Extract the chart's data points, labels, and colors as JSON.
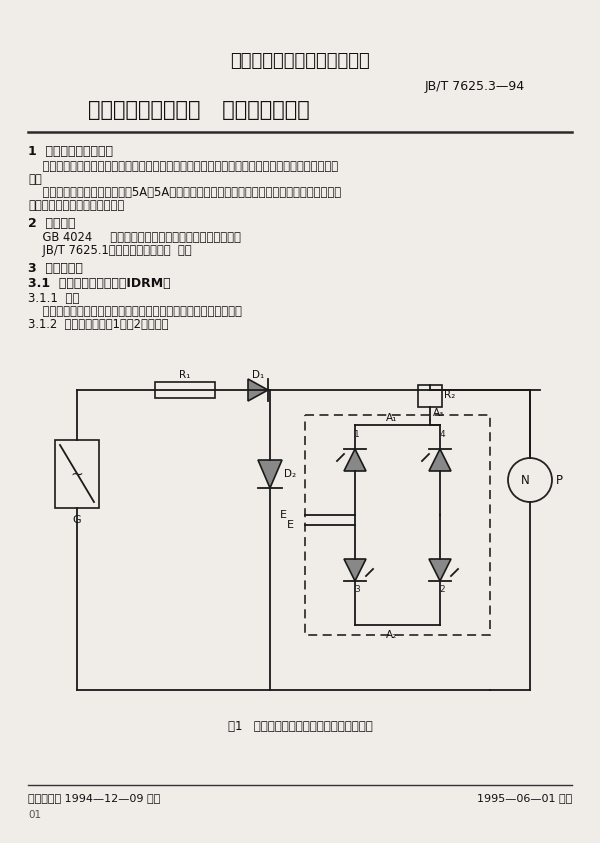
{
  "bg_color": "#f0ede8",
  "title1": "中华人民共和国机械行业标准",
  "title2": "JB/T 7625.3—94",
  "title3": "晶闸管模块测试方法   单相桥和三相桥",
  "section1_title": "1  主题内容与适用范围",
  "section1_body1": "    本标准规定了由反向阻断三极晶闸管（以下简称晶闸管）管芯组成的单相桥和三相桥模块的测试方",
  "section1_body1b": "法。",
  "section1_body2": "    本标准适用于直流输出电流为5A及5A以上的晶闸管单相桥和三相桥模块，由晶闸管组成的单相",
  "section1_body2b": "桥和三相桥组件亦可参照使用。",
  "section2_title": "2  引用标准",
  "section2_body1": "    GB 4024     半导体器件反向阻断三极晶闸管的测试方法",
  "section2_body2": "    JB/T 7625.1晶闸管模块测试方法  通则",
  "section3_title": "3  电特性测试",
  "section31_title": "3.1  断态重复峰值电流（IDRM）",
  "section311_title": "3.1.1  目的",
  "section311_body": "    在规定条件下，测量模块于断态重复峰值电压下的断态峰值电流。",
  "section312_title": "3.1.2  原理电路（见图1、图2）和要求",
  "fig_caption": "图1   断态重复峰值电流测试电路（单相桥）",
  "footer_left": "机械工业部 1994—12—09 批准",
  "footer_right": "1995—06—01 实施",
  "footer_page": "01"
}
